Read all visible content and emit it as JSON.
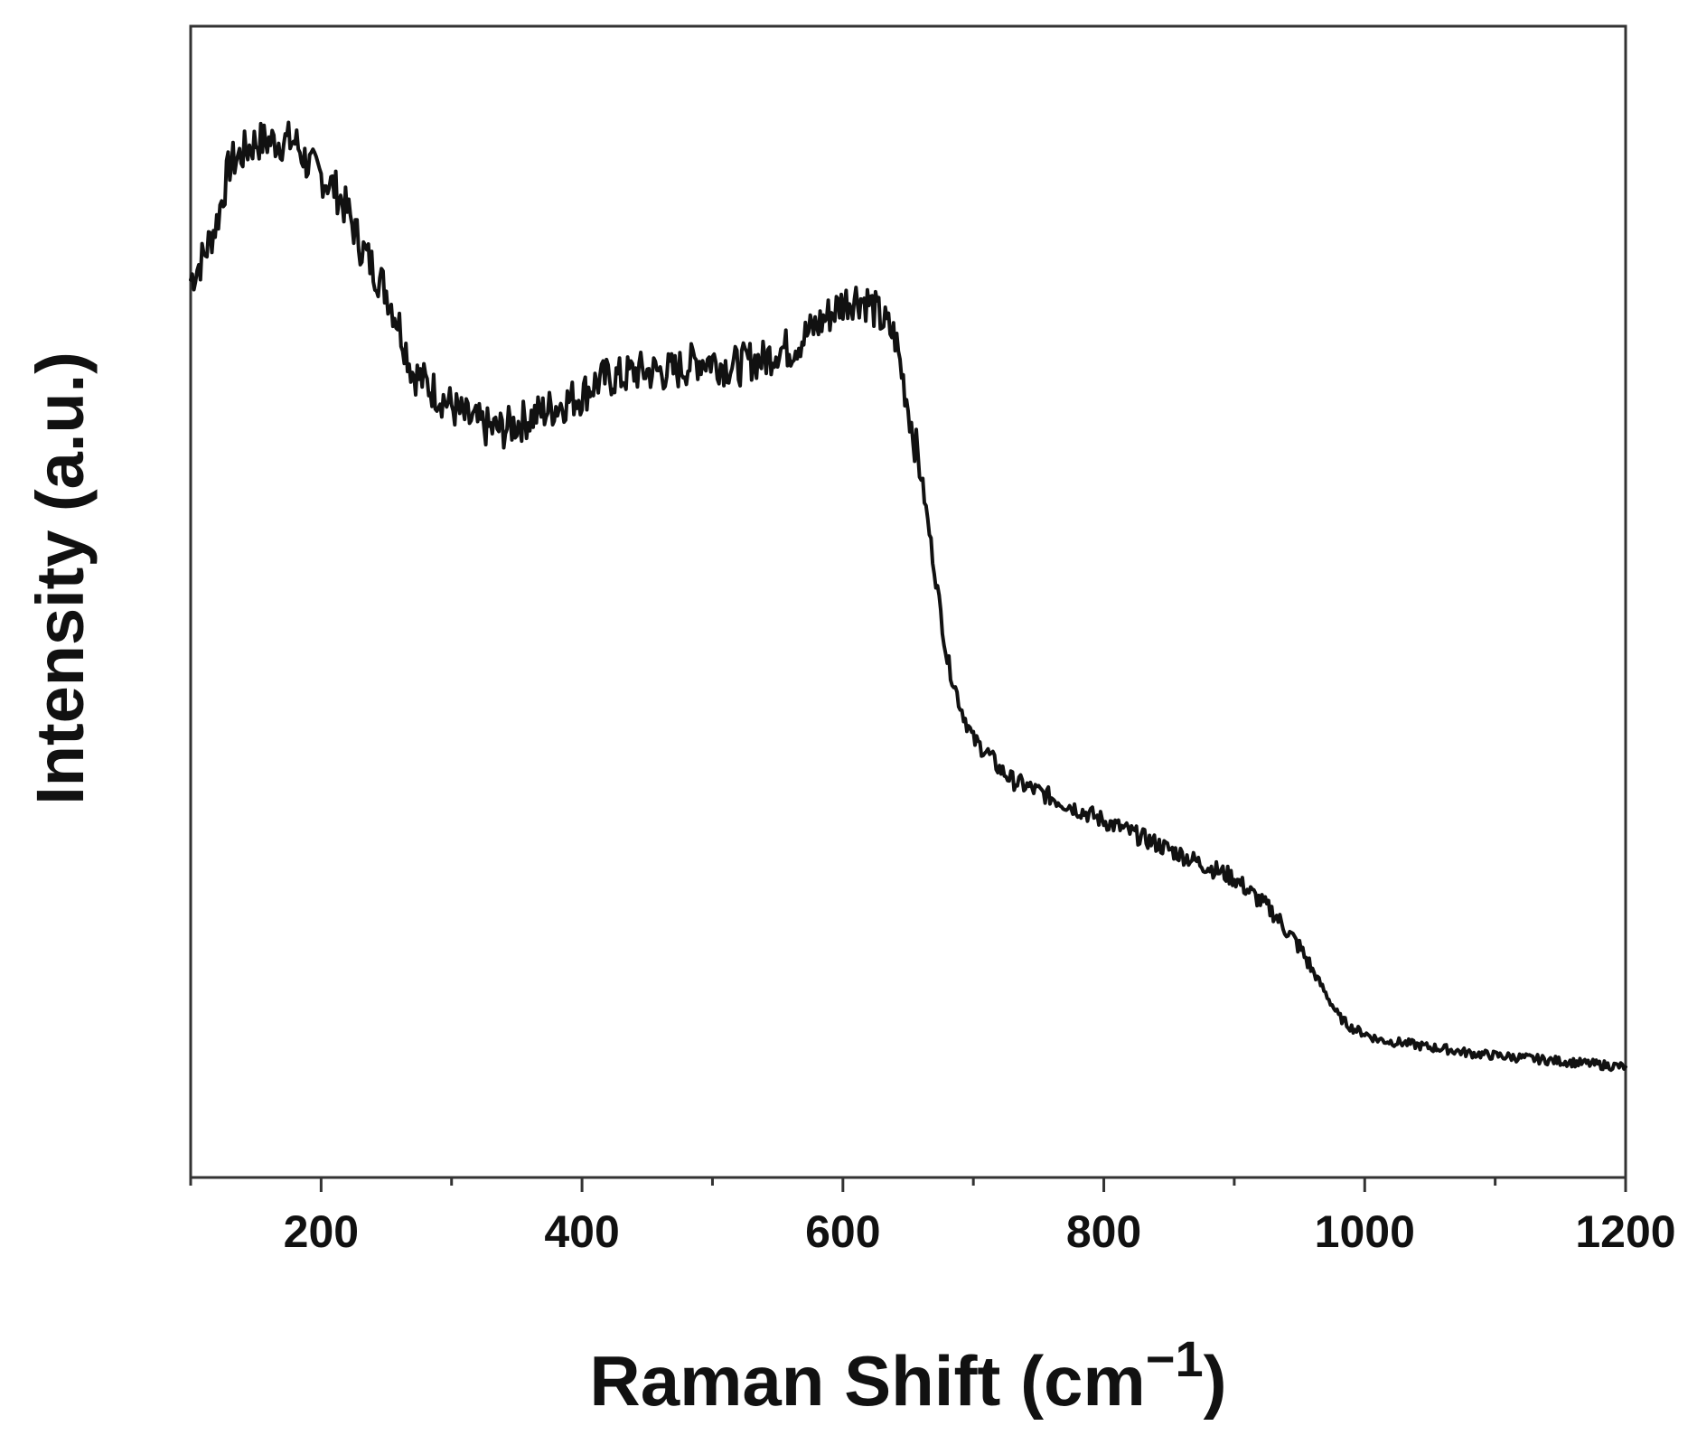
{
  "chart_data": {
    "type": "line",
    "title": "",
    "xlabel": "Raman Shift (cm",
    "xlabel_superscript": "−1",
    "xlabel_close": ")",
    "ylabel": "Intensity (a.u.)",
    "xlim": [
      100,
      1200
    ],
    "ylim": [
      0,
      1
    ],
    "xticks": [
      200,
      400,
      600,
      800,
      1000,
      1200
    ],
    "xminor_ticks": [
      100,
      300,
      500,
      700,
      900,
      1100
    ],
    "yticks": [],
    "grid": false,
    "legend": "none",
    "line_color": "#111111",
    "series": [
      {
        "x": [
          100,
          110,
          120,
          130,
          140,
          150,
          160,
          170,
          180,
          190,
          200,
          210,
          220,
          230,
          240,
          250,
          260,
          270,
          280,
          290,
          300,
          310,
          320,
          330,
          340,
          350,
          360,
          370,
          380,
          390,
          400,
          410,
          420,
          430,
          440,
          450,
          460,
          470,
          480,
          490,
          500,
          510,
          520,
          530,
          540,
          550,
          560,
          570,
          580,
          590,
          600,
          610,
          620,
          630,
          640,
          650,
          660,
          670,
          680,
          690,
          700,
          710,
          720,
          730,
          740,
          750,
          760,
          770,
          780,
          790,
          800,
          810,
          820,
          830,
          840,
          850,
          860,
          870,
          880,
          890,
          900,
          910,
          920,
          930,
          940,
          950,
          960,
          970,
          980,
          990,
          1000,
          1010,
          1020,
          1030,
          1040,
          1050,
          1060,
          1070,
          1080,
          1090,
          1100,
          1110,
          1120,
          1130,
          1140,
          1150,
          1160,
          1170,
          1180,
          1190,
          1200
        ],
        "values": [
          0.78,
          0.8,
          0.83,
          0.88,
          0.89,
          0.9,
          0.9,
          0.9,
          0.9,
          0.88,
          0.87,
          0.86,
          0.84,
          0.81,
          0.79,
          0.77,
          0.74,
          0.7,
          0.69,
          0.68,
          0.67,
          0.66,
          0.655,
          0.65,
          0.65,
          0.655,
          0.66,
          0.665,
          0.67,
          0.675,
          0.68,
          0.69,
          0.695,
          0.695,
          0.7,
          0.7,
          0.7,
          0.7,
          0.705,
          0.71,
          0.71,
          0.705,
          0.705,
          0.71,
          0.71,
          0.72,
          0.72,
          0.73,
          0.74,
          0.75,
          0.76,
          0.765,
          0.76,
          0.745,
          0.73,
          0.67,
          0.61,
          0.53,
          0.45,
          0.41,
          0.38,
          0.37,
          0.355,
          0.345,
          0.34,
          0.335,
          0.33,
          0.325,
          0.32,
          0.315,
          0.31,
          0.305,
          0.3,
          0.295,
          0.29,
          0.285,
          0.28,
          0.275,
          0.27,
          0.265,
          0.26,
          0.25,
          0.24,
          0.23,
          0.215,
          0.2,
          0.18,
          0.16,
          0.14,
          0.13,
          0.125,
          0.12,
          0.118,
          0.117,
          0.115,
          0.113,
          0.112,
          0.11,
          0.108,
          0.107,
          0.106,
          0.105,
          0.104,
          0.103,
          0.102,
          0.101,
          0.1,
          0.099,
          0.098,
          0.097,
          0.096
        ]
      }
    ]
  }
}
